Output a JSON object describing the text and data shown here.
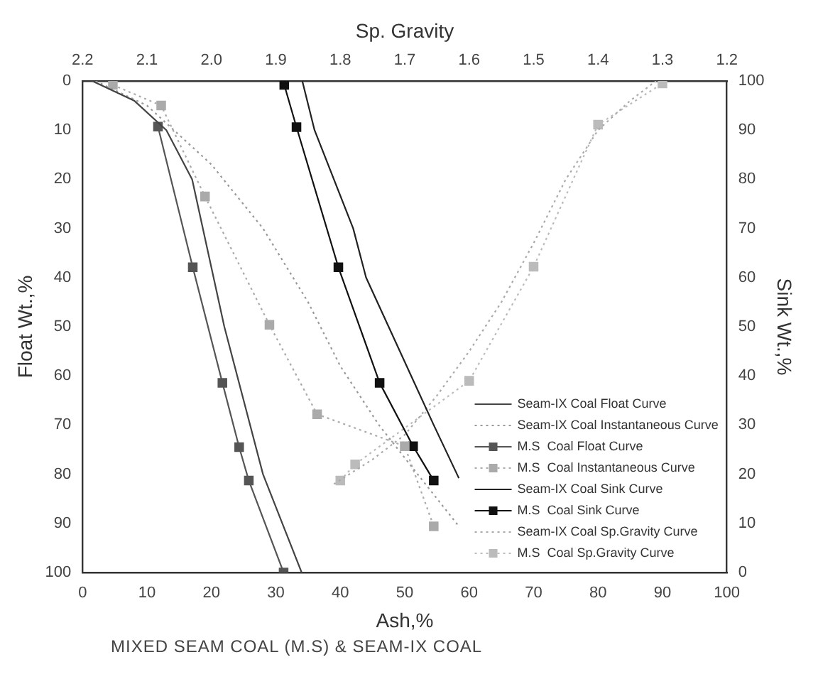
{
  "chart_data": {
    "type": "line",
    "xlabel": "Ash,%",
    "ylabel": "Float Wt.,%",
    "y2label": "Sink Wt.,%",
    "x2label": "Sp. Gravity",
    "annotations": [
      "MIXED SEAM  COAL (M.S) & SEAM-IX COAL"
    ],
    "xlim": [
      0,
      100
    ],
    "xticks": [
      0,
      10,
      20,
      30,
      40,
      50,
      60,
      70,
      80,
      90,
      100
    ],
    "ylim": [
      100,
      0
    ],
    "yticks": [
      0,
      10,
      20,
      30,
      40,
      50,
      60,
      70,
      80,
      90,
      100
    ],
    "y2lim": [
      0,
      100
    ],
    "y2ticks": [
      0,
      10,
      20,
      30,
      40,
      50,
      60,
      70,
      80,
      90,
      100
    ],
    "x2lim": [
      2.2,
      1.2
    ],
    "x2ticks": [
      2.2,
      2.1,
      {
        "value": 2,
        "label": "2.0"
      },
      1.9,
      1.8,
      1.7,
      1.6,
      1.5,
      1.4,
      1.3,
      1.2
    ],
    "grid": false,
    "legend": "bottom right",
    "series": [
      {
        "name": "Seam-IX Coal Float Curve",
        "color": "#444444",
        "line_style": "solid",
        "marker": "none",
        "x": [
          1.5,
          8,
          13,
          17,
          19.5,
          22,
          25,
          28,
          31,
          34
        ],
        "values": [
          0,
          4,
          10,
          20,
          35,
          50,
          65,
          80,
          90,
          100
        ]
      },
      {
        "name": "Seam-IX Coal Instantaneous Curve",
        "color": "#999999",
        "line_style": "dotted",
        "marker": "none",
        "x": [
          2,
          10,
          20,
          28,
          35,
          40,
          46,
          52,
          58.4
        ],
        "values": [
          0,
          5,
          17,
          30,
          45,
          58,
          70,
          80,
          90.6
        ]
      },
      {
        "name": "M.S  Coal Float Curve",
        "color": "#555555",
        "line_style": "solid",
        "marker": "square",
        "x": [
          11.7,
          17.1,
          21.7,
          24.3,
          25.8,
          31.2
        ],
        "values": [
          9.3,
          37.9,
          61.4,
          74.5,
          81.3,
          100
        ]
      },
      {
        "name": "M.S  Coal Instantaneous Curve",
        "color": "#aaaaaa",
        "line_style": "dotted",
        "marker": "square",
        "x": [
          4.7,
          12.2,
          19,
          29,
          36.4,
          50,
          54.5
        ],
        "values": [
          0.8,
          5,
          23.5,
          49.6,
          67.8,
          74.3,
          90.6
        ]
      },
      {
        "name": "Seam-IX Coal Sink Curve",
        "color": "#222222",
        "line_style": "solid",
        "marker": "none",
        "axis": "y2",
        "x": [
          34.1,
          36,
          39,
          42,
          44,
          47.5,
          51,
          54.5,
          58.4
        ],
        "values": [
          100,
          90,
          80,
          70,
          60,
          50,
          40,
          30,
          19.2
        ]
      },
      {
        "name": "M.S  Coal Sink Curve",
        "color": "#111111",
        "line_style": "solid",
        "marker": "square",
        "axis": "y2",
        "x": [
          31.3,
          33.2,
          39.7,
          46.1,
          51.3,
          54.5
        ],
        "values": [
          99.2,
          90.6,
          62.1,
          38.6,
          25.7,
          18.7
        ]
      },
      {
        "name": "Seam-IX Coal Sp.Gravity Curve",
        "color": "#aaaaaa",
        "line_style": "dotted",
        "marker": "none",
        "axis": "x2",
        "x": [
          1.81,
          1.75,
          1.7,
          1.65,
          1.6,
          1.55,
          1.5,
          1.45,
          1.4,
          1.35,
          1.31
        ],
        "values": [
          82,
          77,
          72,
          64,
          55,
          45,
          33,
          20,
          10,
          4,
          0
        ]
      },
      {
        "name": "M.S  Coal Sp.Gravity Curve",
        "color": "#bbbbbb",
        "line_style": "dotted",
        "marker": "square",
        "axis": "x2",
        "x": [
          1.8,
          1.777,
          1.6,
          1.5,
          1.4,
          1.3
        ],
        "values": [
          81.3,
          78,
          61,
          37.8,
          8.9,
          0.5
        ]
      }
    ]
  }
}
